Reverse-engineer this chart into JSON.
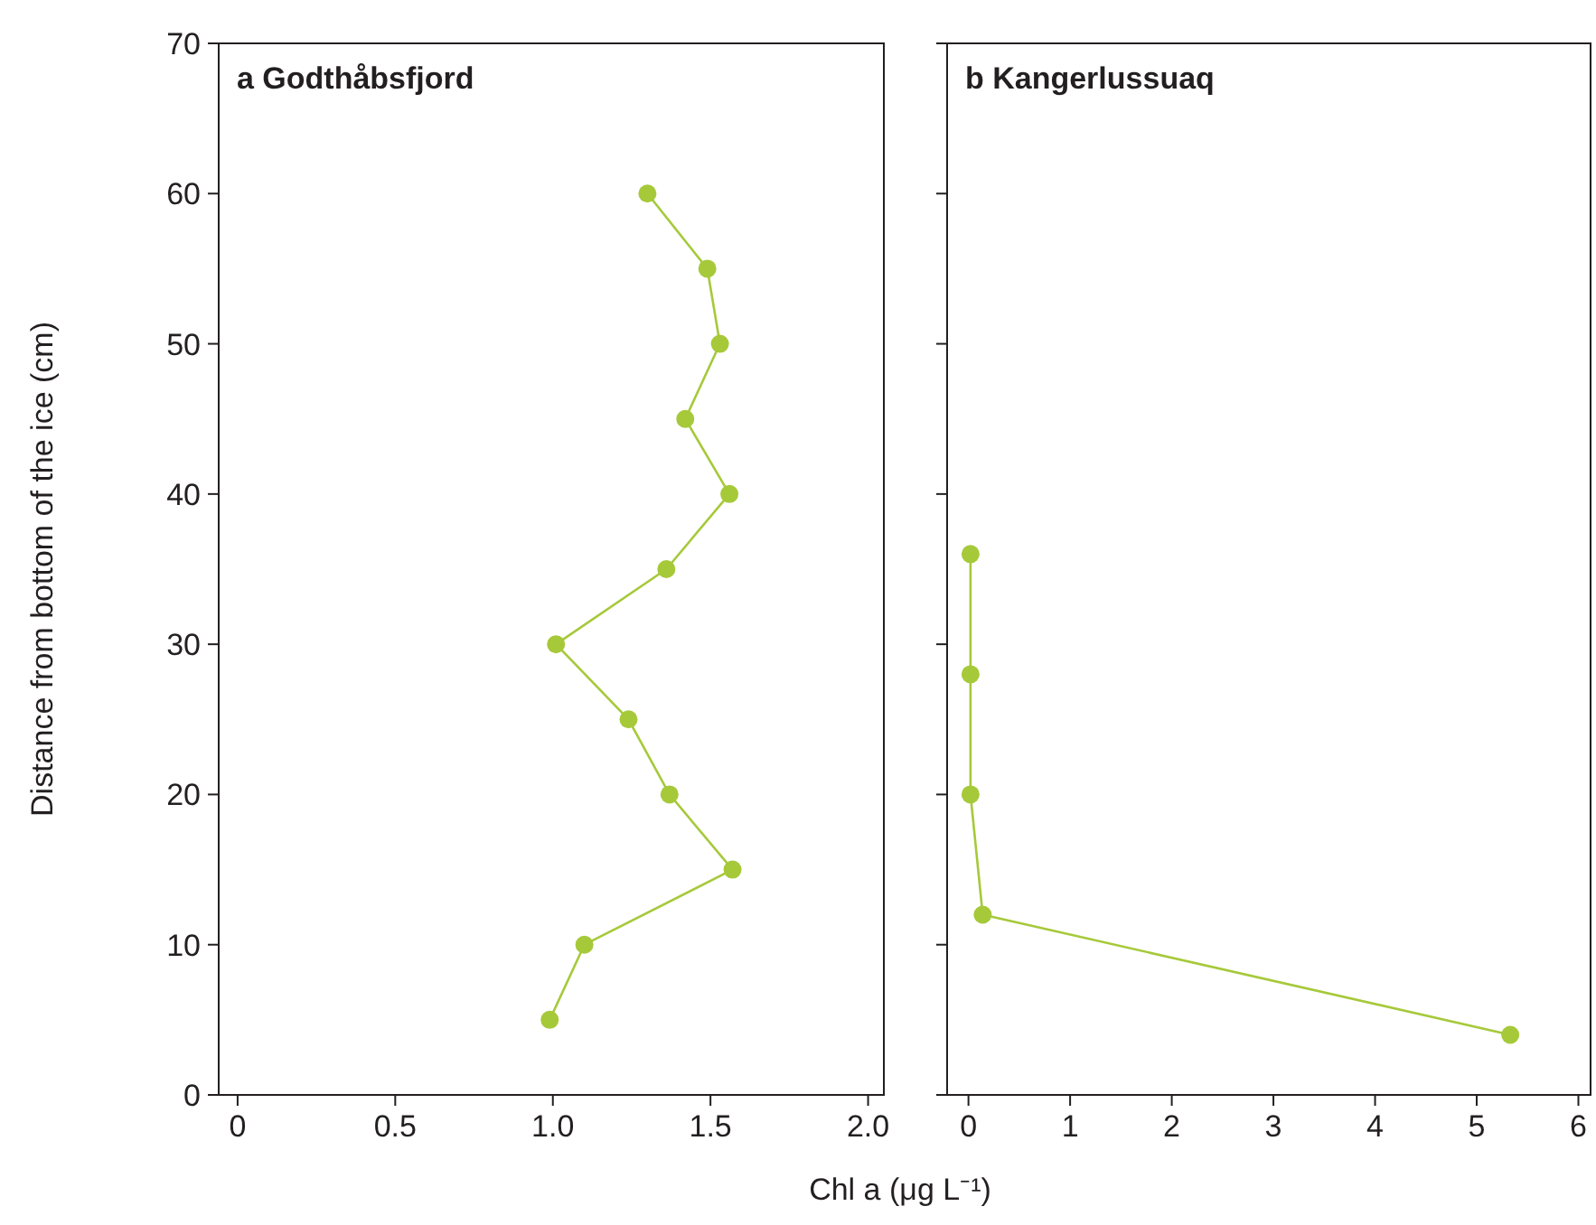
{
  "chart_data": [
    {
      "type": "line",
      "title": "a Godthåbsfjord",
      "ylabel": "Distance from bottom of the ice (cm)",
      "xlabel": "Chl a (μg L⁻¹)",
      "marker": "circle",
      "series": [
        {
          "color": "#a6c93a",
          "x": [
            1.3,
            1.49,
            1.53,
            1.42,
            1.56,
            1.36,
            1.01,
            1.24,
            1.37,
            1.57,
            1.1,
            0.99
          ],
          "values": [
            60,
            55,
            50,
            45,
            40,
            35,
            30,
            25,
            20,
            15,
            10,
            5
          ]
        }
      ],
      "xlim": [
        -0.06,
        2.05
      ],
      "xticks": [
        0,
        0.5,
        {
          "value": 1,
          "label": "1.0"
        },
        1.5,
        {
          "value": 2,
          "label": "2.0"
        }
      ],
      "ylim": [
        0,
        70
      ],
      "yticks": [
        0,
        10,
        20,
        30,
        40,
        50,
        60,
        70
      ]
    },
    {
      "type": "line",
      "title": "b Kangerlussuaq",
      "marker": "circle",
      "series": [
        {
          "color": "#a6c93a",
          "x": [
            0.02,
            0.02,
            0.02,
            0.14,
            5.33
          ],
          "values": [
            36,
            28,
            20,
            12,
            4
          ]
        }
      ],
      "xlim": [
        -0.21,
        6.12
      ],
      "xticks": [
        0,
        1,
        2,
        3,
        4,
        5,
        6
      ],
      "ylim": [
        0,
        70
      ],
      "yticks": [
        0,
        10,
        20,
        30,
        40,
        50,
        60,
        70
      ],
      "tick_labels": "x"
    }
  ]
}
